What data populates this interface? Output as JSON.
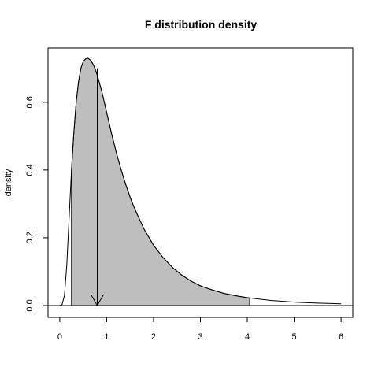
{
  "chart_data": {
    "type": "area",
    "title": "F distribution density",
    "xlabel": "",
    "ylabel": "density",
    "xlim": [
      -0.25,
      6.25
    ],
    "ylim": [
      -0.035,
      0.76
    ],
    "x_ticks": [
      "0",
      "1",
      "2",
      "3",
      "4",
      "5",
      "6"
    ],
    "y_ticks": [
      "0.0",
      "0.2",
      "0.4",
      "0.6"
    ],
    "grid": false,
    "series": [
      {
        "role": "density-curve",
        "x": [
          0,
          0.05,
          0.1,
          0.15,
          0.2,
          0.25,
          0.3,
          0.35,
          0.4,
          0.45,
          0.5,
          0.55,
          0.6,
          0.65,
          0.7,
          0.75,
          0.8,
          0.85,
          0.9,
          1.0,
          1.1,
          1.2,
          1.3,
          1.4,
          1.5,
          1.6,
          1.8,
          2.0,
          2.2,
          2.4,
          2.6,
          2.8,
          3.0,
          3.25,
          3.5,
          3.75,
          4.0,
          4.5,
          5.0,
          5.5,
          6.0
        ],
        "y": [
          0,
          0.003,
          0.03,
          0.12,
          0.26,
          0.4,
          0.51,
          0.6,
          0.66,
          0.7,
          0.72,
          0.728,
          0.73,
          0.725,
          0.715,
          0.7,
          0.68,
          0.655,
          0.63,
          0.57,
          0.51,
          0.455,
          0.405,
          0.36,
          0.32,
          0.285,
          0.225,
          0.178,
          0.142,
          0.113,
          0.09,
          0.072,
          0.058,
          0.046,
          0.036,
          0.029,
          0.023,
          0.015,
          0.01,
          0.007,
          0.005
        ]
      }
    ],
    "shaded_region": {
      "from": 0.25,
      "to": 4.05,
      "color": "#bebebe"
    },
    "marker_line": {
      "x": 0.8,
      "y_top": 0.7,
      "y_bottom": 0.0,
      "arrow": "down"
    }
  }
}
